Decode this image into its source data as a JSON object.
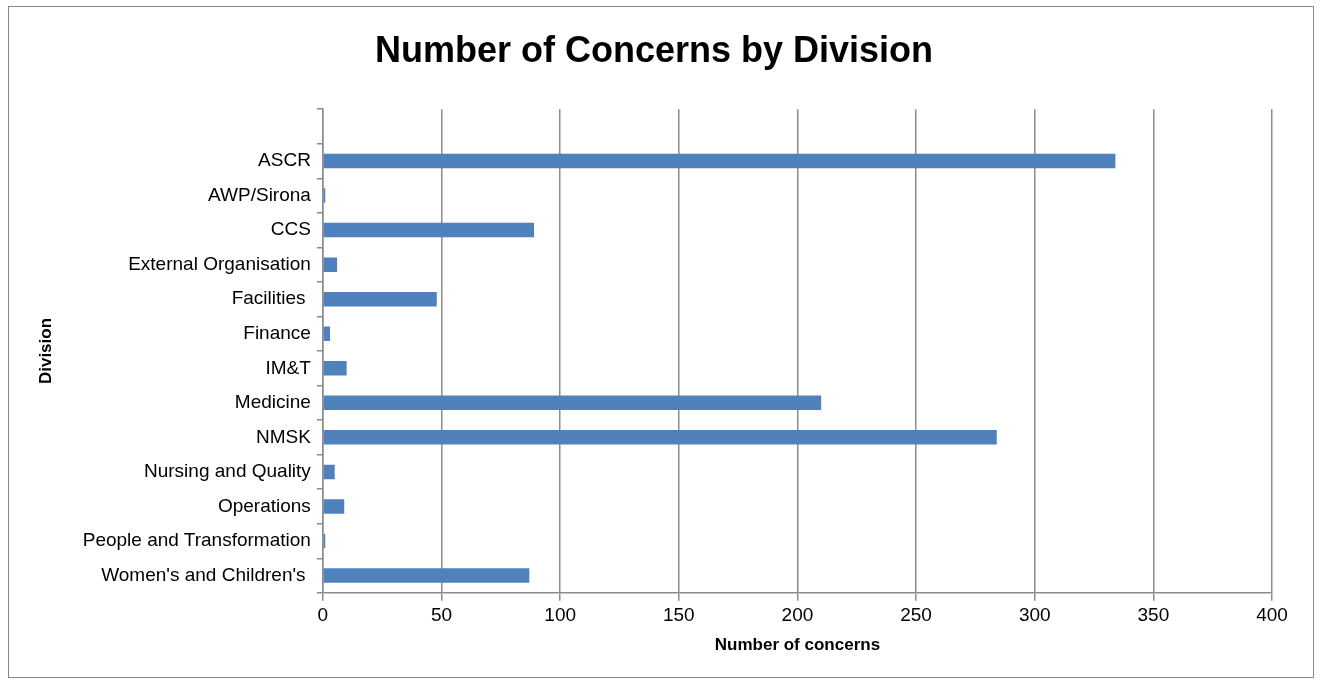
{
  "chart_data": {
    "type": "bar",
    "orientation": "horizontal",
    "title": "Number of Concerns by Division",
    "xlabel": "Number of concerns",
    "ylabel": "Division",
    "categories": [
      null,
      "ASCR",
      "AWP/Sirona",
      "CCS",
      "External Organisation",
      "Facilities ",
      "Finance",
      "IM&T",
      "Medicine",
      "NMSK",
      "Nursing and Quality",
      "Operations",
      "People and Transformation",
      "Women's and Children's "
    ],
    "values": [
      null,
      334,
      1,
      89,
      6,
      48,
      3,
      10,
      210,
      284,
      5,
      9,
      1,
      87
    ],
    "color": "#4f81bd",
    "xlim": [
      0,
      400
    ],
    "xticks": [
      0,
      50,
      100,
      150,
      200,
      250,
      300,
      350,
      400
    ],
    "grid": "x",
    "legend": false
  }
}
